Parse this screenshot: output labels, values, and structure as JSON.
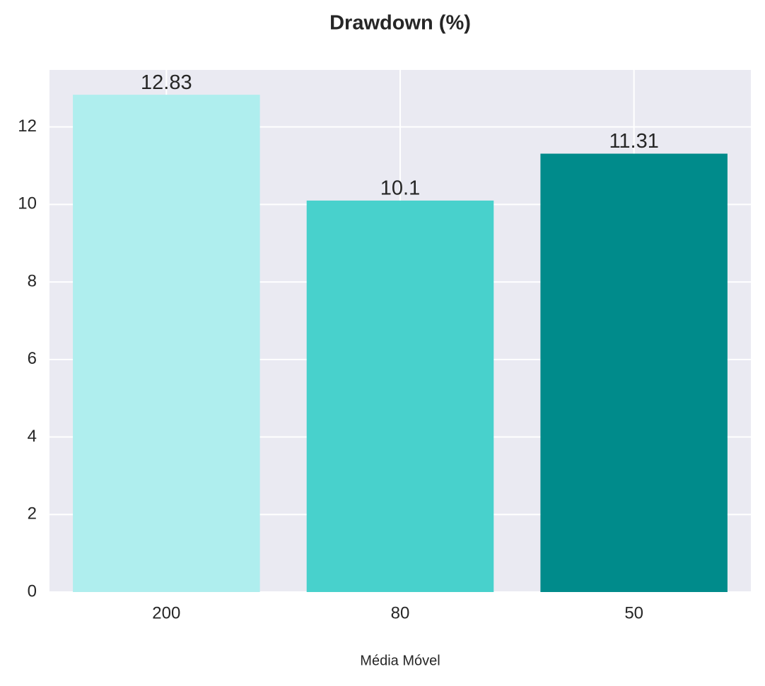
{
  "chart_data": {
    "type": "bar",
    "title": "Drawdown (%)",
    "x_label": "Média Móvel",
    "categories": [
      "200",
      "80",
      "50"
    ],
    "values": [
      12.83,
      10.1,
      11.31
    ],
    "colors": [
      "#afeeee",
      "#48d1cc",
      "#008b8b"
    ],
    "ylim": [
      0,
      13.47
    ],
    "yticks": [
      0,
      2,
      4,
      6,
      8,
      10,
      12
    ],
    "grid": true
  }
}
